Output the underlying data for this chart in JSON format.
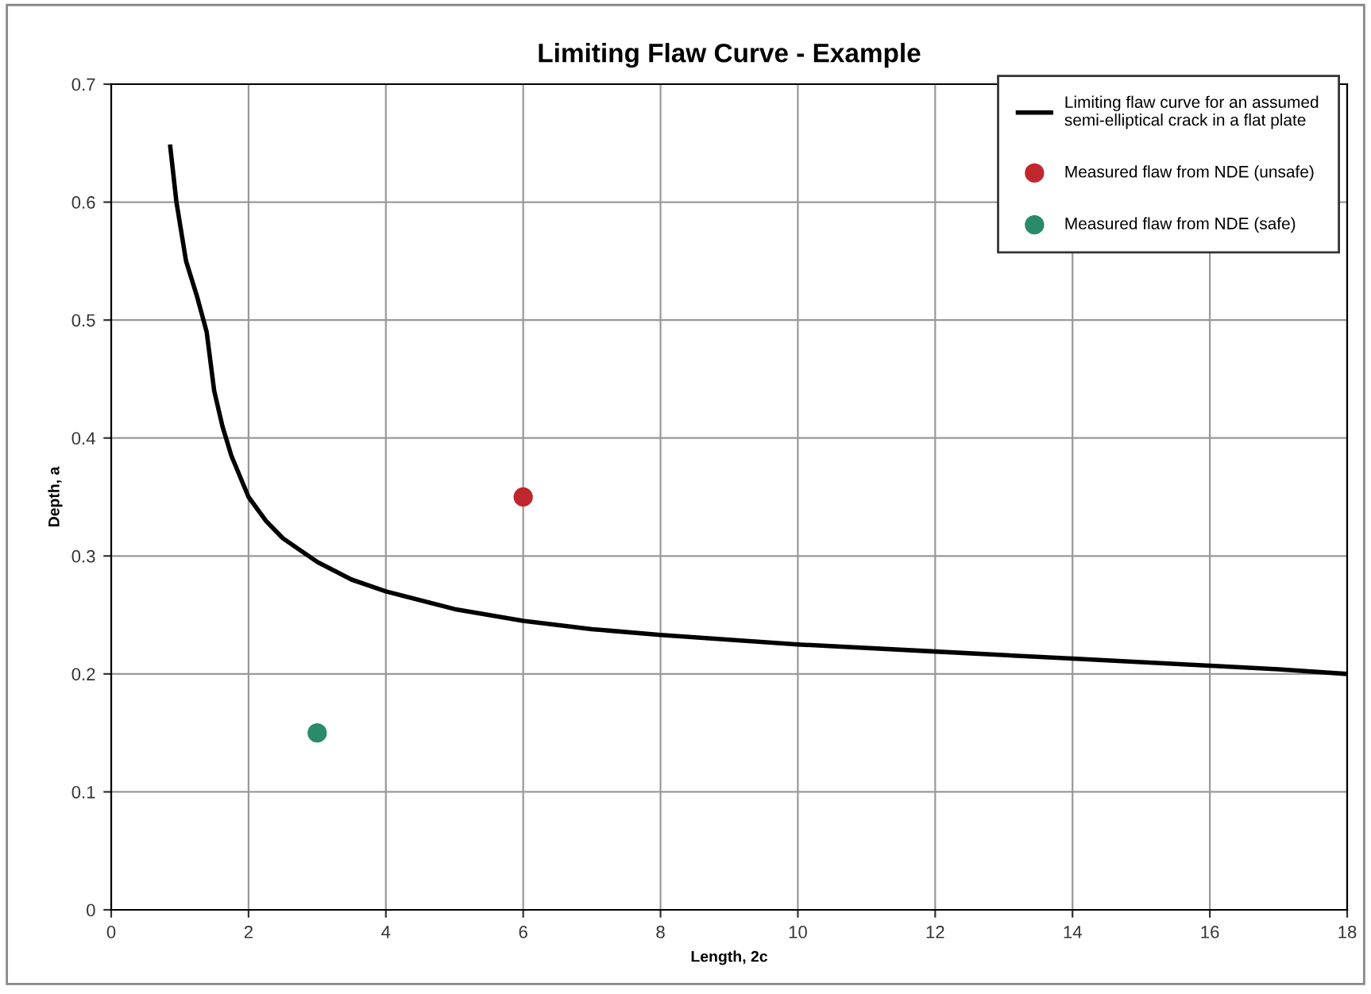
{
  "chart_data": {
    "type": "line",
    "title": "Limiting Flaw Curve - Example",
    "xlabel": "Length, 2c",
    "ylabel": "Depth, a",
    "xlim": [
      0,
      18
    ],
    "xticks": [
      0,
      2,
      4,
      6,
      8,
      10,
      12,
      14,
      16,
      18
    ],
    "ylim": [
      0,
      0.7
    ],
    "yticks": [
      0,
      0.1,
      0.2,
      0.3,
      0.4,
      0.5,
      0.6,
      0.7
    ],
    "grid": true,
    "legend": "top right",
    "series": [
      {
        "name": "Limiting flaw curve for an assumed semi-elliptical crack in a flat plate",
        "color": "#000000",
        "marker": "none",
        "line_style": "solid",
        "x": [
          0.86,
          0.95,
          1.09,
          1.25,
          1.39,
          1.5,
          1.62,
          1.75,
          2.0,
          2.25,
          2.5,
          3.0,
          3.5,
          4.0,
          5.0,
          6.0,
          7.0,
          8.0,
          10.0,
          12.0,
          14.0,
          15.0,
          16.0,
          17.0,
          18.0
        ],
        "values": [
          0.647,
          0.6,
          0.55,
          0.52,
          0.49,
          0.44,
          0.41,
          0.385,
          0.35,
          0.33,
          0.315,
          0.295,
          0.28,
          0.27,
          0.255,
          0.245,
          0.238,
          0.233,
          0.225,
          0.219,
          0.213,
          0.21,
          0.207,
          0.204,
          0.2
        ]
      },
      {
        "name": "Measured flaw from NDE (unsafe)",
        "type": "scatter",
        "color": "#c0272d",
        "marker": "circle",
        "x": [
          6
        ],
        "values": [
          0.35
        ]
      },
      {
        "name": "Measured flaw from NDE (safe)",
        "type": "scatter",
        "color": "#2a8a6a",
        "marker": "circle",
        "x": [
          3
        ],
        "values": [
          0.15
        ]
      }
    ]
  }
}
